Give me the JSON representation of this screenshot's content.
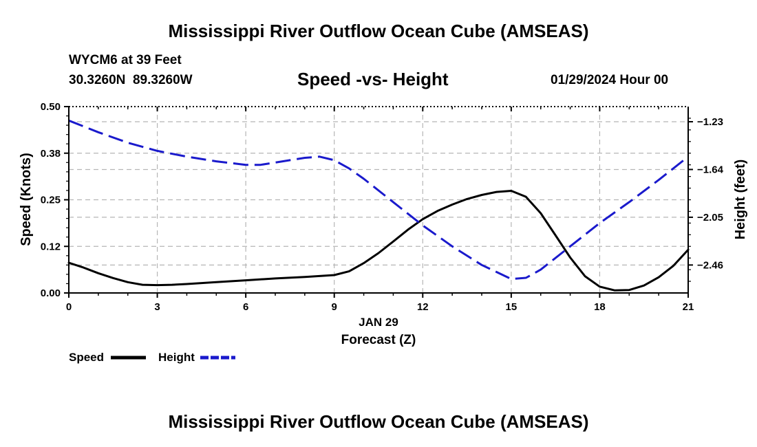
{
  "page": {
    "title": "Mississippi River Outflow Ocean Cube (AMSEAS)",
    "station": "WYCM6 at 39 Feet",
    "coords": "30.3260N  89.3260W",
    "subtitle": "Speed -vs- Height",
    "datetime": "01/29/2024 Hour 00",
    "footer_title": "Mississippi River Outflow Ocean Cube (AMSEAS)"
  },
  "chart_data": {
    "type": "line",
    "title": "Speed -vs- Height",
    "xlabel": "Forecast (Z)",
    "xlabel_date": "JAN 29",
    "ylabel": "Speed (Knots)",
    "ylabel_right": "Height (feet)",
    "xlim": [
      0,
      21
    ],
    "ylim": [
      0,
      0.5
    ],
    "ylim_right": [
      -2.7,
      -1.1
    ],
    "x_ticks": [
      0,
      3,
      6,
      9,
      12,
      15,
      18,
      21
    ],
    "x_tick_labels": [
      "0",
      "3",
      "6",
      "9",
      "12",
      "15",
      "18",
      "21"
    ],
    "y_ticks": [
      0,
      0.125,
      0.25,
      0.375,
      0.5
    ],
    "y_tick_labels": [
      "0.00",
      "0.12",
      "0.25",
      "0.38",
      "0.50"
    ],
    "y_ticks_right": [
      -1.23,
      -1.64,
      -2.05,
      -2.46
    ],
    "y_tick_labels_right": [
      "−1.23",
      "−1.64",
      "−2.05",
      "−2.46"
    ],
    "grid": true,
    "legend": "bottom-left",
    "series": [
      {
        "name": "Speed",
        "axis": "left",
        "color": "#000000",
        "dash": "solid",
        "x": [
          0,
          0.5,
          1,
          1.5,
          2,
          2.5,
          3,
          3.5,
          4,
          5,
          6,
          7,
          8,
          9,
          9.5,
          10,
          10.5,
          11,
          11.5,
          12,
          12.5,
          13,
          13.5,
          14,
          14.5,
          15,
          15.5,
          16,
          16.5,
          17,
          17.5,
          18,
          18.5,
          19,
          19.5,
          20,
          20.5,
          21
        ],
        "values": [
          0.081,
          0.068,
          0.053,
          0.04,
          0.029,
          0.022,
          0.021,
          0.022,
          0.024,
          0.029,
          0.034,
          0.039,
          0.043,
          0.048,
          0.058,
          0.08,
          0.107,
          0.138,
          0.17,
          0.198,
          0.22,
          0.237,
          0.252,
          0.263,
          0.271,
          0.274,
          0.258,
          0.214,
          0.155,
          0.095,
          0.045,
          0.017,
          0.007,
          0.008,
          0.02,
          0.042,
          0.073,
          0.116
        ]
      },
      {
        "name": "Height",
        "axis": "right",
        "color": "#1a1acc",
        "dash": "dashed",
        "x": [
          0,
          1,
          2,
          3,
          4,
          5,
          6,
          6.5,
          7,
          8,
          8.5,
          9,
          9.5,
          10,
          11,
          12,
          13,
          14,
          15,
          15.5,
          16,
          17,
          18,
          19,
          20,
          21
        ],
        "values": [
          -1.22,
          -1.32,
          -1.41,
          -1.48,
          -1.53,
          -1.57,
          -1.6,
          -1.6,
          -1.58,
          -1.54,
          -1.53,
          -1.56,
          -1.63,
          -1.72,
          -1.92,
          -2.12,
          -2.3,
          -2.46,
          -2.58,
          -2.57,
          -2.5,
          -2.3,
          -2.1,
          -1.92,
          -1.73,
          -1.53
        ]
      }
    ]
  }
}
